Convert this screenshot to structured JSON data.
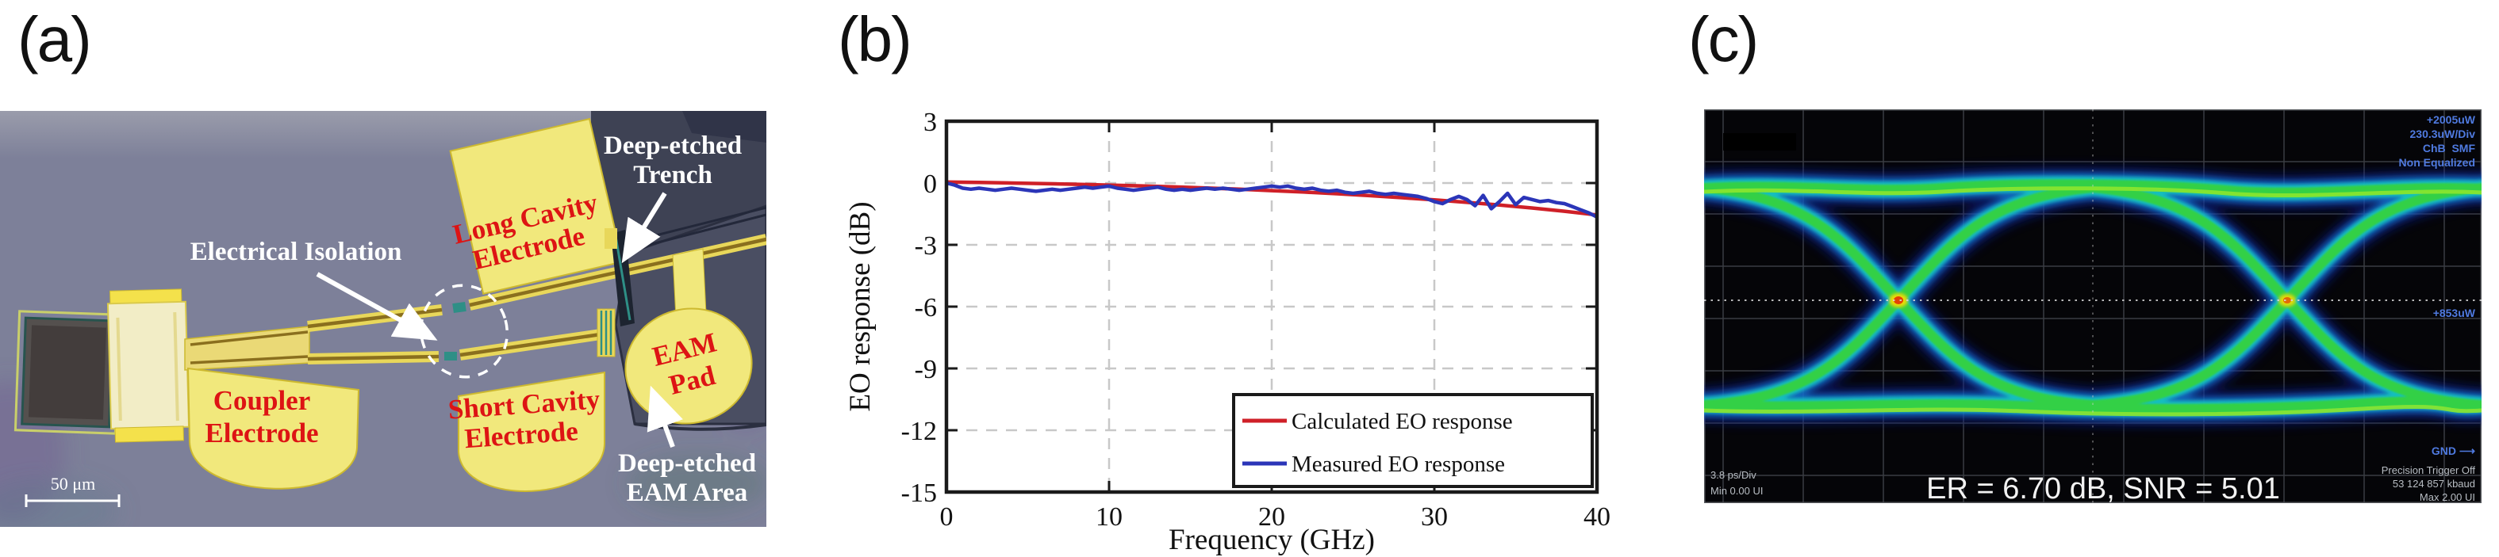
{
  "figure": {
    "panel_labels": {
      "a": "(a)",
      "b": "(b)",
      "c": "(c)"
    }
  },
  "panel_a": {
    "labels": {
      "electrical_isolation": "Electrical Isolation",
      "deep_etched_trench": [
        "Deep-etched",
        "Trench"
      ],
      "long_cavity": [
        "Long Cavity",
        "Electrode"
      ],
      "coupler": [
        "Coupler",
        "Electrode"
      ],
      "short_cavity": [
        "Short Cavity",
        "Electrode"
      ],
      "eam_pad": [
        "EAM",
        "Pad"
      ],
      "deep_etched_eam": [
        "Deep-etched",
        "EAM Area"
      ],
      "scale_bar": "50 μm"
    },
    "colors": {
      "background": "#7d8099",
      "electrode_yellow": "#f1e87c",
      "label_red": "#dd1414",
      "deep_etch_dark": "#4a4e62"
    }
  },
  "chart_data": {
    "type": "line",
    "title": "",
    "xlabel": "Frequency (GHz)",
    "ylabel": "EO response (dB)",
    "xlim": [
      0,
      40
    ],
    "ylim": [
      -15,
      3
    ],
    "xticks": [
      0,
      10,
      20,
      30,
      40
    ],
    "yticks": [
      3,
      0,
      -3,
      -6,
      -9,
      -12,
      -15
    ],
    "grid": {
      "on": true,
      "style": "dashed",
      "x_major": [
        10,
        20,
        30
      ],
      "y_major": [
        0,
        -3,
        -6,
        -9,
        -12
      ]
    },
    "legend_position": "lower right",
    "series": [
      {
        "name": "Calculated EO response",
        "color": "#cf2028",
        "f": [
          0,
          2,
          4,
          6,
          8,
          10,
          12,
          14,
          16,
          18,
          20,
          22,
          24,
          26,
          28,
          30,
          32,
          34,
          36,
          38,
          40
        ],
        "db": [
          0.05,
          0.03,
          0.0,
          -0.03,
          -0.06,
          -0.1,
          -0.14,
          -0.19,
          -0.24,
          -0.3,
          -0.37,
          -0.44,
          -0.52,
          -0.61,
          -0.71,
          -0.82,
          -0.94,
          -1.07,
          -1.21,
          -1.37,
          -1.55
        ]
      },
      {
        "name": "Measured EO response",
        "color": "#2b35b8",
        "f": [
          0,
          0.5,
          1,
          1.5,
          2,
          2.5,
          3,
          3.5,
          4,
          4.5,
          5,
          5.5,
          6,
          6.5,
          7,
          7.5,
          8,
          8.5,
          9,
          9.5,
          10,
          10.5,
          11,
          11.5,
          12,
          12.5,
          13,
          13.5,
          14,
          14.5,
          15,
          15.5,
          16,
          16.5,
          17,
          17.5,
          18,
          18.5,
          19,
          19.5,
          20,
          20.5,
          21,
          21.5,
          22,
          22.5,
          23,
          23.5,
          24,
          24.5,
          25,
          25.5,
          26,
          26.5,
          27,
          27.5,
          28,
          28.5,
          29,
          29.5,
          30,
          30.5,
          31,
          31.5,
          32,
          32.5,
          33,
          33.5,
          34,
          34.5,
          35,
          35.5,
          36,
          36.5,
          37,
          37.5,
          38,
          38.5,
          39,
          39.5,
          40
        ],
        "db": [
          0.0,
          -0.1,
          -0.25,
          -0.3,
          -0.25,
          -0.3,
          -0.35,
          -0.3,
          -0.25,
          -0.3,
          -0.35,
          -0.4,
          -0.35,
          -0.3,
          -0.35,
          -0.3,
          -0.25,
          -0.2,
          -0.25,
          -0.2,
          -0.15,
          -0.25,
          -0.3,
          -0.35,
          -0.3,
          -0.25,
          -0.2,
          -0.3,
          -0.35,
          -0.3,
          -0.35,
          -0.3,
          -0.25,
          -0.3,
          -0.25,
          -0.3,
          -0.35,
          -0.3,
          -0.25,
          -0.2,
          -0.15,
          -0.2,
          -0.15,
          -0.25,
          -0.3,
          -0.25,
          -0.35,
          -0.4,
          -0.35,
          -0.45,
          -0.5,
          -0.45,
          -0.4,
          -0.5,
          -0.55,
          -0.5,
          -0.55,
          -0.6,
          -0.65,
          -0.75,
          -0.9,
          -1.0,
          -0.8,
          -0.65,
          -0.8,
          -1.1,
          -0.6,
          -1.25,
          -0.9,
          -0.5,
          -1.05,
          -0.7,
          -0.8,
          -0.9,
          -0.85,
          -0.95,
          -1.0,
          -1.15,
          -1.3,
          -1.45,
          -1.65
        ]
      }
    ]
  },
  "panel_c": {
    "top_right_readout": [
      "+2005uW",
      "230.3uW/Div",
      "ChB  SMF",
      "Non Equalized"
    ],
    "mid_right_readout": "+853uW",
    "gnd_label": "GND ⟶",
    "bottom_left_readout": [
      "3.8 ps/Div",
      "Min 0.00 UI"
    ],
    "bottom_right_readout": [
      "Precision Trigger Off",
      "53 124 857 kbaud",
      "Max 2.00 UI"
    ],
    "measurement_text": "ER = 6.70 dB, SNR = 5.01",
    "colors": {
      "trace_green": "#35d23f",
      "trace_cyan": "#19cfc0",
      "trace_blue": "#1479d8",
      "hot_red": "#e33005",
      "readout_blue": "#4f7ae0"
    }
  }
}
